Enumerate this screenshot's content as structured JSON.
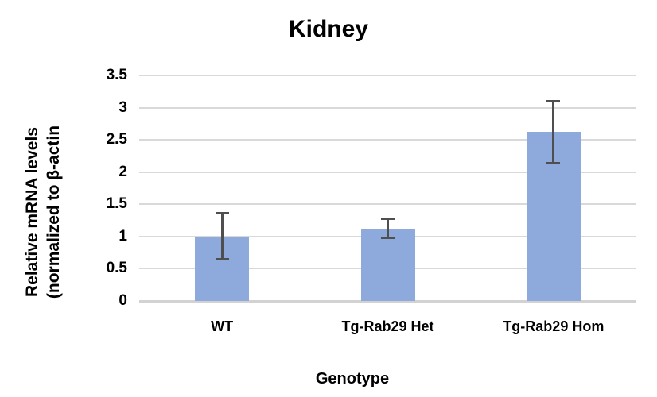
{
  "chart_data": {
    "type": "bar",
    "title": "Kidney",
    "xlabel": "Genotype",
    "ylabel_lines": [
      "Relative mRNA levels",
      "(normalized to β-actin"
    ],
    "categories": [
      "WT",
      "Tg-Rab29 Het",
      "Tg-Rab29 Hom"
    ],
    "values": [
      1.0,
      1.12,
      2.62
    ],
    "error_bars": [
      {
        "low": 0.64,
        "high": 1.37
      },
      {
        "low": 0.97,
        "high": 1.28
      },
      {
        "low": 2.13,
        "high": 3.1
      }
    ],
    "yticks": [
      0,
      0.5,
      1,
      1.5,
      2,
      2.5,
      3,
      3.5
    ],
    "ylim": [
      0,
      3.5
    ],
    "grid": true,
    "legend": "none",
    "colors": {
      "bar_fill": "#8EA9DB",
      "error_bar": "#4F4F4F",
      "gridline": "#D9D9D9",
      "axis_line": "#D2D2D2",
      "text": "#000000"
    }
  }
}
